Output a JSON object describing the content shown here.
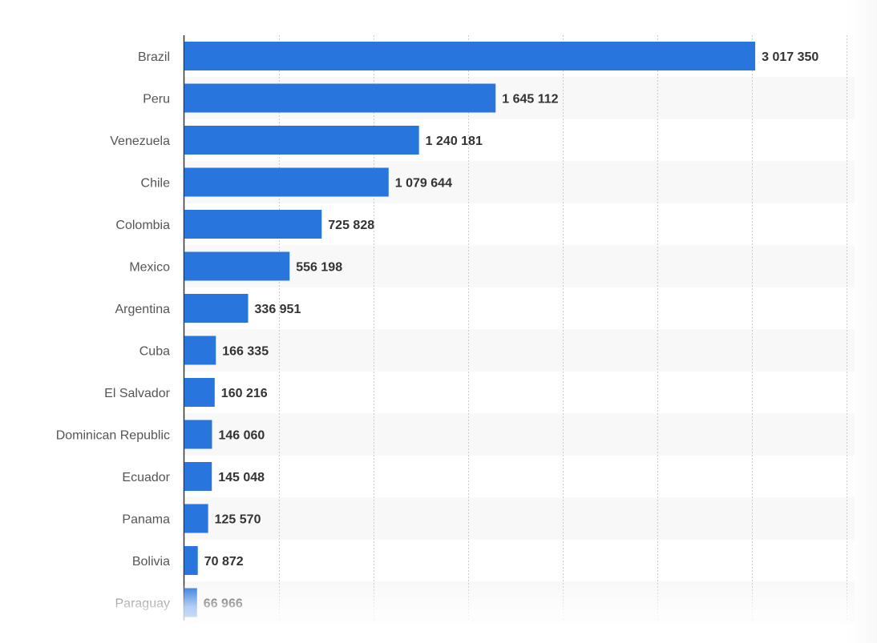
{
  "colors": {
    "bar": "#2876dd",
    "stripe": "#f8f8f8",
    "grid": "#cccccc",
    "axis": "#333333"
  },
  "chart_data": {
    "type": "bar",
    "orientation": "horizontal",
    "title": "",
    "xlabel": "",
    "ylabel": "",
    "categories": [
      "Brazil",
      "Peru",
      "Venezuela",
      "Chile",
      "Colombia",
      "Mexico",
      "Argentina",
      "Cuba",
      "El Salvador",
      "Dominican Republic",
      "Ecuador",
      "Panama",
      "Bolivia",
      "Paraguay"
    ],
    "values": [
      3017350,
      1645112,
      1240181,
      1079644,
      725828,
      556198,
      336951,
      166335,
      160216,
      146060,
      145048,
      125570,
      70872,
      66966
    ],
    "value_labels": [
      "3 017 350",
      "1 645 112",
      "1 240 181",
      "1 079 644",
      "725 828",
      "556 198",
      "336 951",
      "166 335",
      "160 216",
      "146 060",
      "145 048",
      "125 570",
      "70 872",
      "66 966"
    ],
    "xlim": [
      0,
      3500000
    ],
    "grid": true,
    "legend": "none"
  }
}
